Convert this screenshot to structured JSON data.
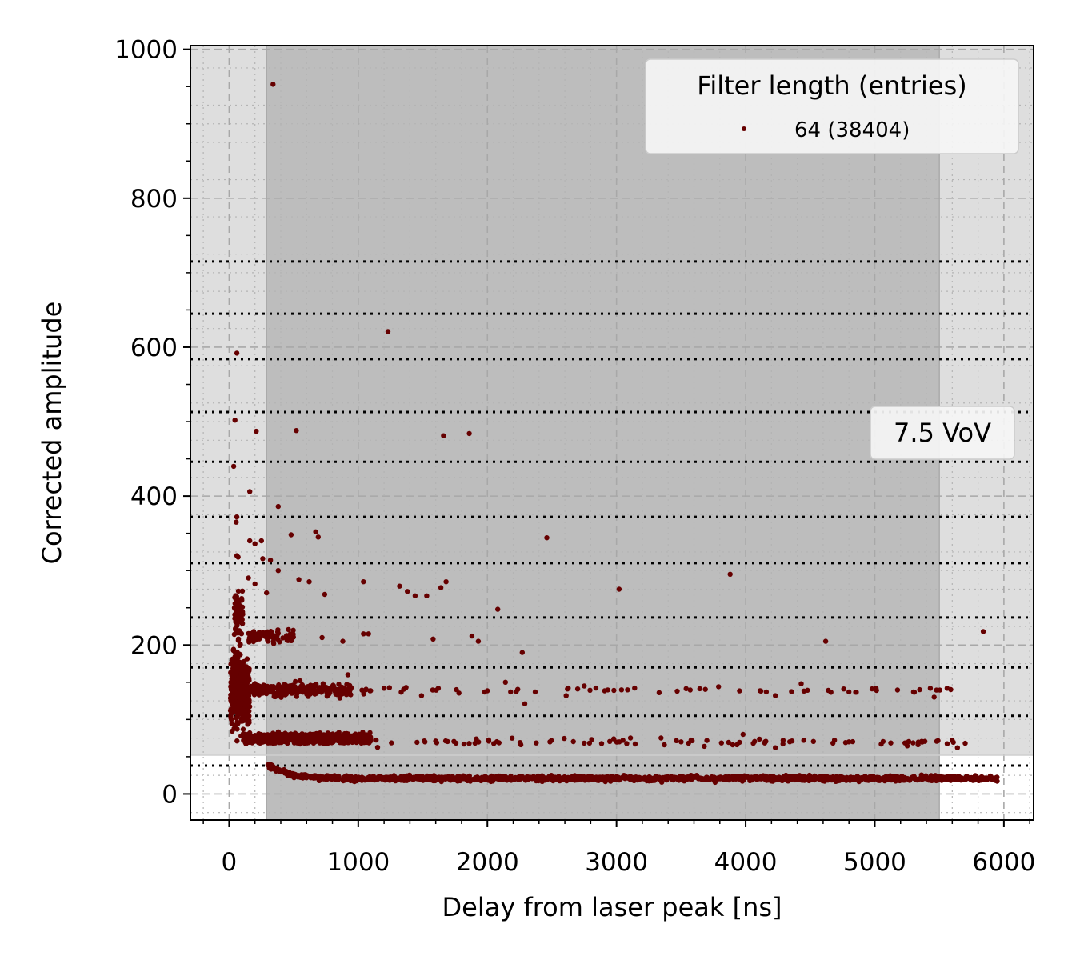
{
  "chart_data": {
    "type": "scatter",
    "xlabel": "Delay from laser peak [ns]",
    "ylabel": "Corrected amplitude",
    "xlim": [
      -300,
      6230
    ],
    "ylim": [
      -35,
      1005
    ],
    "xticks": [
      0,
      1000,
      2000,
      3000,
      4000,
      5000,
      6000
    ],
    "xtick_labels": [
      "0",
      "1000",
      "2000",
      "3000",
      "4000",
      "5000",
      "6000"
    ],
    "yticks": [
      0,
      200,
      400,
      600,
      800,
      1000
    ],
    "ytick_labels": [
      "0",
      "200",
      "400",
      "600",
      "800",
      "1000"
    ],
    "grid": true,
    "legend": {
      "title": "Filter length (entries)",
      "placement": "top-right",
      "entries": [
        {
          "label": "64 (38404)",
          "color": "#660000"
        }
      ]
    },
    "annotation": "7.5 VoV",
    "shaded_regions": [
      {
        "x_range": [
          -300,
          6230
        ],
        "y_range": [
          52,
          1005
        ],
        "color": "#dedede"
      },
      {
        "x_range": [
          290,
          5500
        ],
        "y_range": [
          -35,
          1005
        ],
        "color": "#bdbdbd"
      }
    ],
    "threshold_lines_y": [
      38,
      105,
      170,
      237,
      310,
      372,
      446,
      513,
      584,
      645,
      715
    ],
    "series": [
      {
        "name": "64 (38404)",
        "color": "#660000",
        "bands": [
          {
            "x_start": 300,
            "x_end": 5950,
            "y_center": 21,
            "y_spread": 4,
            "count": 1400,
            "y_decay_amp": 18,
            "y_decay_tau": 150
          },
          {
            "x_start": 120,
            "x_end": 1100,
            "y_center": 75,
            "y_spread": 7,
            "count": 900,
            "y_decay_amp": 0,
            "y_decay_tau": 1
          },
          {
            "x_start": 1100,
            "x_end": 5650,
            "y_center": 70,
            "y_spread": 6,
            "count": 80,
            "y_decay_amp": 0,
            "y_decay_tau": 1
          },
          {
            "x_start": 150,
            "x_end": 950,
            "y_center": 140,
            "y_spread": 9,
            "count": 260,
            "y_decay_amp": 0,
            "y_decay_tau": 1
          },
          {
            "x_start": 950,
            "x_end": 5600,
            "y_center": 139,
            "y_spread": 5,
            "count": 45,
            "y_decay_amp": 0,
            "y_decay_tau": 1
          },
          {
            "x_start": 150,
            "x_end": 500,
            "y_center": 212,
            "y_spread": 10,
            "count": 70,
            "y_decay_amp": 0,
            "y_decay_tau": 1
          },
          {
            "x_start": 10,
            "x_end": 160,
            "y_center": 140,
            "y_spread": 60,
            "count": 350,
            "y_decay_amp": 0,
            "y_decay_tau": 1
          },
          {
            "x_start": 40,
            "x_end": 110,
            "y_center": 240,
            "y_spread": 35,
            "count": 70,
            "y_decay_amp": 0,
            "y_decay_tau": 1
          }
        ],
        "points": [
          [
            340,
            953
          ],
          [
            1230,
            621
          ],
          [
            60,
            592
          ],
          [
            45,
            502
          ],
          [
            210,
            487
          ],
          [
            520,
            488
          ],
          [
            1660,
            481
          ],
          [
            1860,
            484
          ],
          [
            35,
            440
          ],
          [
            160,
            406
          ],
          [
            380,
            386
          ],
          [
            60,
            372
          ],
          [
            55,
            365
          ],
          [
            670,
            352
          ],
          [
            480,
            348
          ],
          [
            690,
            345
          ],
          [
            2460,
            344
          ],
          [
            160,
            340
          ],
          [
            200,
            336
          ],
          [
            250,
            340
          ],
          [
            60,
            320
          ],
          [
            70,
            318
          ],
          [
            260,
            316
          ],
          [
            320,
            314
          ],
          [
            380,
            300
          ],
          [
            540,
            288
          ],
          [
            620,
            285
          ],
          [
            1040,
            285
          ],
          [
            1320,
            279
          ],
          [
            1380,
            272
          ],
          [
            1440,
            266
          ],
          [
            1530,
            266
          ],
          [
            1640,
            277
          ],
          [
            1680,
            285
          ],
          [
            740,
            268
          ],
          [
            3020,
            275
          ],
          [
            3880,
            295
          ],
          [
            2080,
            248
          ],
          [
            150,
            290
          ],
          [
            200,
            282
          ],
          [
            290,
            270
          ],
          [
            1880,
            212
          ],
          [
            1930,
            205
          ],
          [
            1040,
            215
          ],
          [
            1080,
            215
          ],
          [
            1580,
            208
          ],
          [
            880,
            205
          ],
          [
            720,
            210
          ],
          [
            4620,
            205
          ],
          [
            5840,
            218
          ],
          [
            2270,
            190
          ],
          [
            920,
            160
          ],
          [
            1060,
            140
          ],
          [
            1200,
            142
          ],
          [
            1370,
            143
          ],
          [
            1490,
            132
          ],
          [
            1620,
            142
          ],
          [
            1760,
            140
          ],
          [
            2140,
            150
          ],
          [
            2180,
            137
          ],
          [
            2370,
            137
          ],
          [
            2620,
            141
          ],
          [
            2750,
            145
          ],
          [
            2980,
            139
          ],
          [
            3330,
            136
          ],
          [
            3470,
            138
          ],
          [
            3790,
            144
          ],
          [
            4160,
            137
          ],
          [
            4230,
            132
          ],
          [
            4430,
            148
          ],
          [
            4640,
            139
          ],
          [
            4760,
            141
          ],
          [
            4800,
            137
          ],
          [
            5010,
            142
          ],
          [
            5300,
            137
          ],
          [
            5430,
            142
          ],
          [
            5560,
            142
          ],
          [
            5460,
            130
          ],
          [
            2290,
            121
          ],
          [
            2610,
            132
          ],
          [
            3050,
            72
          ],
          [
            3370,
            66
          ],
          [
            3500,
            70
          ],
          [
            3680,
            64
          ],
          [
            3900,
            66
          ],
          [
            3980,
            80
          ],
          [
            4150,
            70
          ],
          [
            4230,
            62
          ],
          [
            4290,
            72
          ],
          [
            4450,
            72
          ],
          [
            4800,
            70
          ],
          [
            5050,
            67
          ],
          [
            5600,
            72
          ],
          [
            5700,
            68
          ],
          [
            5640,
            62
          ]
        ]
      }
    ]
  }
}
